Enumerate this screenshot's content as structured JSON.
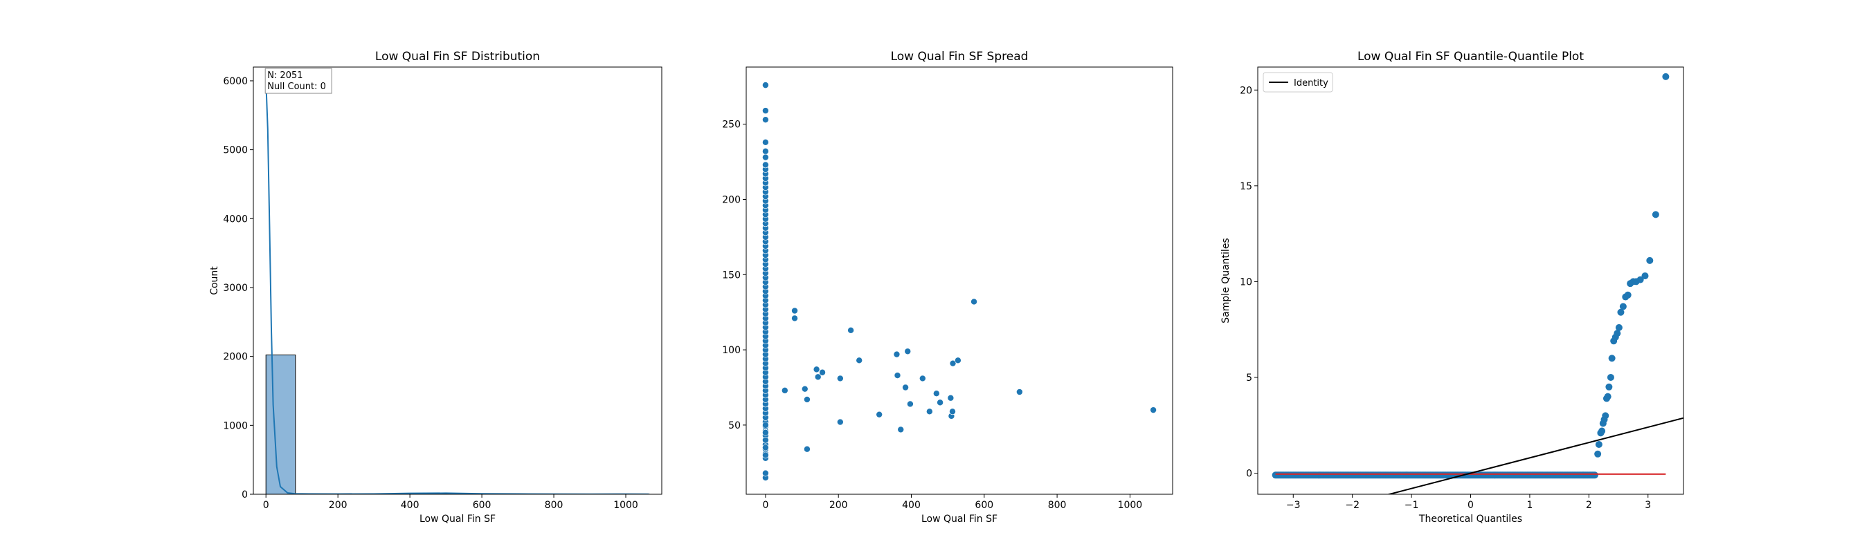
{
  "chart_data": [
    {
      "type": "histogram",
      "title": "Low Qual Fin SF Distribution",
      "xlabel": "Low Qual Fin SF",
      "ylabel": "Count",
      "xlim": [
        -35,
        1100
      ],
      "ylim": [
        0,
        6200
      ],
      "xticks": [
        0,
        200,
        400,
        600,
        800,
        1000
      ],
      "yticks": [
        0,
        1000,
        2000,
        3000,
        4000,
        5000,
        6000
      ],
      "bins": [
        {
          "x0": 0,
          "x1": 82,
          "count": 2022
        },
        {
          "x0": 82,
          "x1": 164,
          "count": 4
        },
        {
          "x0": 164,
          "x1": 246,
          "count": 4
        },
        {
          "x0": 246,
          "x1": 328,
          "count": 2
        },
        {
          "x0": 328,
          "x1": 410,
          "count": 8
        },
        {
          "x0": 410,
          "x1": 492,
          "count": 4
        },
        {
          "x0": 492,
          "x1": 574,
          "count": 5
        },
        {
          "x0": 574,
          "x1": 656,
          "count": 0
        },
        {
          "x0": 656,
          "x1": 738,
          "count": 1
        },
        {
          "x0": 738,
          "x1": 820,
          "count": 0
        },
        {
          "x0": 820,
          "x1": 902,
          "count": 0
        },
        {
          "x0": 902,
          "x1": 984,
          "count": 0
        },
        {
          "x0": 984,
          "x1": 1066,
          "count": 1
        }
      ],
      "kde": {
        "x": [
          0,
          5,
          10,
          15,
          20,
          30,
          40,
          60,
          80,
          120,
          200,
          300,
          400,
          500,
          600,
          700,
          800,
          900,
          1000,
          1064
        ],
        "y": [
          6000,
          5300,
          3900,
          2400,
          1300,
          400,
          110,
          20,
          8,
          5,
          4,
          5,
          14,
          16,
          8,
          5,
          2,
          1,
          3,
          1
        ]
      },
      "annotation": [
        "N: 2051",
        "Null Count: 0"
      ],
      "bar_color": "#8db6d9",
      "line_color": "#1f77b4"
    },
    {
      "type": "scatter",
      "title": "Low Qual Fin SF Spread",
      "xlabel": "Low Qual Fin SF",
      "ylabel": "",
      "xlim": [
        -53,
        1117
      ],
      "ylim": [
        4,
        288
      ],
      "xticks": [
        0,
        200,
        400,
        600,
        800,
        1000
      ],
      "yticks": [
        50,
        100,
        150,
        200,
        250
      ],
      "zero_column_y": [
        15,
        18,
        30,
        35,
        40,
        45,
        50,
        253,
        259,
        276,
        238,
        232,
        228
      ],
      "zero_column_range": [
        28,
        224
      ],
      "points": [
        {
          "x": 53,
          "y": 73
        },
        {
          "x": 80,
          "y": 126
        },
        {
          "x": 80,
          "y": 121
        },
        {
          "x": 108,
          "y": 74
        },
        {
          "x": 114,
          "y": 67
        },
        {
          "x": 114,
          "y": 34
        },
        {
          "x": 140,
          "y": 87
        },
        {
          "x": 144,
          "y": 82
        },
        {
          "x": 156,
          "y": 85
        },
        {
          "x": 205,
          "y": 81
        },
        {
          "x": 205,
          "y": 52
        },
        {
          "x": 234,
          "y": 113
        },
        {
          "x": 257,
          "y": 93
        },
        {
          "x": 312,
          "y": 57
        },
        {
          "x": 360,
          "y": 97
        },
        {
          "x": 362,
          "y": 83
        },
        {
          "x": 371,
          "y": 47
        },
        {
          "x": 384,
          "y": 75
        },
        {
          "x": 390,
          "y": 99
        },
        {
          "x": 397,
          "y": 64
        },
        {
          "x": 431,
          "y": 81
        },
        {
          "x": 450,
          "y": 59
        },
        {
          "x": 469,
          "y": 71
        },
        {
          "x": 479,
          "y": 65
        },
        {
          "x": 508,
          "y": 68
        },
        {
          "x": 510,
          "y": 56
        },
        {
          "x": 513,
          "y": 59
        },
        {
          "x": 514,
          "y": 91
        },
        {
          "x": 528,
          "y": 93
        },
        {
          "x": 572,
          "y": 132
        },
        {
          "x": 697,
          "y": 72
        },
        {
          "x": 1064,
          "y": 60
        }
      ],
      "point_color": "#1f77b4"
    },
    {
      "type": "scatter",
      "title": "Low Qual Fin SF Quantile-Quantile Plot",
      "xlabel": "Theoretical Quantiles",
      "ylabel": "Sample Quantiles",
      "xlim": [
        -3.6,
        3.6
      ],
      "ylim": [
        -1.1,
        21.2
      ],
      "xticks": [
        -3,
        -2,
        -1,
        0,
        1,
        2,
        3
      ],
      "yticks": [
        0,
        5,
        10,
        15,
        20
      ],
      "legend": {
        "label": "Identity",
        "position": "top-left"
      },
      "baseline_range": [
        -3.3,
        2.12
      ],
      "baseline_y": -0.1,
      "points": [
        {
          "x": 2.15,
          "y": 1.0
        },
        {
          "x": 2.17,
          "y": 1.5
        },
        {
          "x": 2.2,
          "y": 2.1
        },
        {
          "x": 2.22,
          "y": 2.2
        },
        {
          "x": 2.24,
          "y": 2.6
        },
        {
          "x": 2.26,
          "y": 2.8
        },
        {
          "x": 2.28,
          "y": 3.0
        },
        {
          "x": 2.3,
          "y": 3.9
        },
        {
          "x": 2.32,
          "y": 4.0
        },
        {
          "x": 2.34,
          "y": 4.5
        },
        {
          "x": 2.37,
          "y": 5.0
        },
        {
          "x": 2.39,
          "y": 6.0
        },
        {
          "x": 2.42,
          "y": 6.9
        },
        {
          "x": 2.45,
          "y": 7.1
        },
        {
          "x": 2.48,
          "y": 7.3
        },
        {
          "x": 2.51,
          "y": 7.6
        },
        {
          "x": 2.54,
          "y": 8.4
        },
        {
          "x": 2.58,
          "y": 8.7
        },
        {
          "x": 2.62,
          "y": 9.2
        },
        {
          "x": 2.66,
          "y": 9.3
        },
        {
          "x": 2.7,
          "y": 9.9
        },
        {
          "x": 2.75,
          "y": 10.0
        },
        {
          "x": 2.8,
          "y": 10.0
        },
        {
          "x": 2.87,
          "y": 10.1
        },
        {
          "x": 2.95,
          "y": 10.3
        },
        {
          "x": 3.03,
          "y": 11.1
        },
        {
          "x": 3.13,
          "y": 13.5
        },
        {
          "x": 3.3,
          "y": 20.7
        }
      ],
      "identity_line": {
        "slope": 0.8,
        "intercept": 0
      },
      "reference_line": {
        "y": -0.05,
        "x": [
          -3.3,
          3.3
        ]
      },
      "point_color": "#1f77b4",
      "identity_color": "#000000",
      "reference_color": "#d62728"
    }
  ]
}
